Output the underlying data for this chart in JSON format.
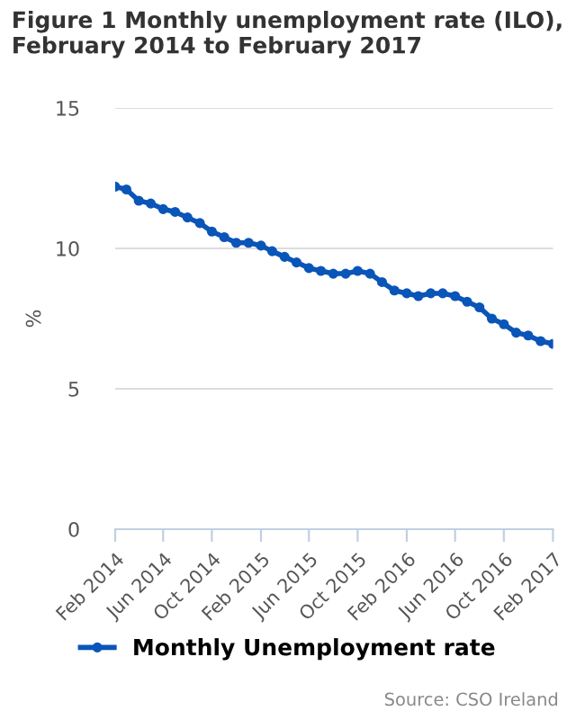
{
  "chart_data": {
    "type": "line",
    "title": "Figure 1 Monthly unemployment rate (ILO), February 2014 to February 2017",
    "ylabel": "%",
    "x": [
      "2014-02",
      "2014-03",
      "2014-04",
      "2014-05",
      "2014-06",
      "2014-07",
      "2014-08",
      "2014-09",
      "2014-10",
      "2014-11",
      "2014-12",
      "2015-01",
      "2015-02",
      "2015-03",
      "2015-04",
      "2015-05",
      "2015-06",
      "2015-07",
      "2015-08",
      "2015-09",
      "2015-10",
      "2015-11",
      "2015-12",
      "2016-01",
      "2016-02",
      "2016-03",
      "2016-04",
      "2016-05",
      "2016-06",
      "2016-07",
      "2016-08",
      "2016-09",
      "2016-10",
      "2016-11",
      "2016-12",
      "2017-01",
      "2017-02"
    ],
    "series": [
      {
        "name": "Monthly Unemployment rate",
        "color": "#0a55b8",
        "values": [
          12.2,
          12.1,
          11.7,
          11.6,
          11.4,
          11.3,
          11.1,
          10.9,
          10.6,
          10.4,
          10.2,
          10.2,
          10.1,
          9.9,
          9.7,
          9.5,
          9.3,
          9.2,
          9.1,
          9.1,
          9.2,
          9.1,
          8.8,
          8.5,
          8.4,
          8.3,
          8.4,
          8.4,
          8.3,
          8.1,
          7.9,
          7.5,
          7.3,
          7.0,
          6.9,
          6.7,
          6.6
        ]
      }
    ],
    "xlim": [
      "2014-02",
      "2017-02"
    ],
    "xticks": [
      {
        "value": "2014-02",
        "label": "Feb 2014"
      },
      {
        "value": "2014-06",
        "label": "Jun 2014"
      },
      {
        "value": "2014-10",
        "label": "Oct 2014"
      },
      {
        "value": "2015-02",
        "label": "Feb 2015"
      },
      {
        "value": "2015-06",
        "label": "Jun 2015"
      },
      {
        "value": "2015-10",
        "label": "Oct 2015"
      },
      {
        "value": "2016-02",
        "label": "Feb 2016"
      },
      {
        "value": "2016-06",
        "label": "Jun 2016"
      },
      {
        "value": "2016-10",
        "label": "Oct 2016"
      },
      {
        "value": "2017-02",
        "label": "Feb 2017"
      }
    ],
    "ylim": [
      0,
      15
    ],
    "yticks": [
      0,
      5,
      10,
      15
    ],
    "grid": "y",
    "legend": "bottom",
    "marker": "circle",
    "line_style": "solid",
    "annotations": [
      "Source: CSO Ireland"
    ]
  }
}
